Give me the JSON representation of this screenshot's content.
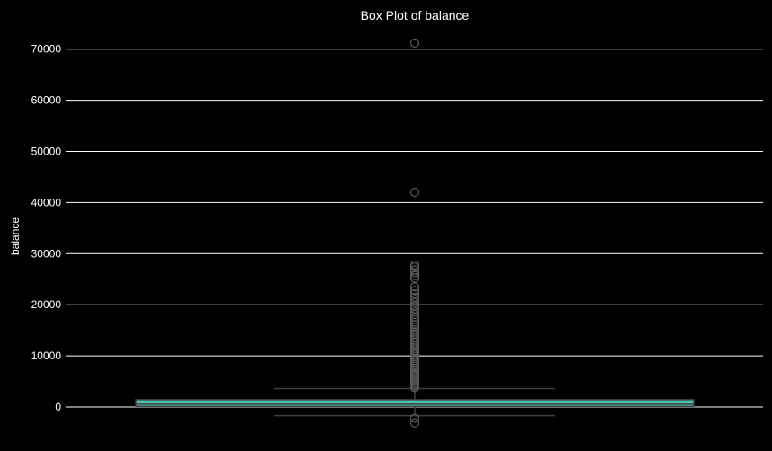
{
  "chart_data": {
    "type": "box",
    "title": "Box Plot of balance",
    "xlabel": "",
    "ylabel": "balance",
    "ylim": [
      -3800,
      73300
    ],
    "yticks": [
      0,
      10000,
      20000,
      30000,
      40000,
      50000,
      60000,
      70000
    ],
    "ytick_labels": [
      "0",
      "10000",
      "20000",
      "30000",
      "40000",
      "50000",
      "60000",
      "70000"
    ],
    "grid": "horizontal",
    "box": {
      "q1": 120,
      "median": 550,
      "q3": 1430,
      "whisker_low": -1700,
      "whisker_high": 3600
    },
    "outliers": [
      71200,
      42000,
      27800,
      27400,
      26800,
      26300,
      25700,
      25200,
      23500,
      22800,
      22100,
      21500,
      21000,
      20400,
      19800,
      19200,
      18600,
      18100,
      17600,
      17100,
      16600,
      16100,
      15600,
      15100,
      14700,
      14300,
      13900,
      13500,
      13100,
      12700,
      12300,
      11900,
      11500,
      11100,
      10700,
      10300,
      9900,
      9500,
      9100,
      8700,
      8300,
      7900,
      7500,
      7100,
      6800,
      6500,
      6200,
      5900,
      5600,
      5300,
      5000,
      4700,
      4400,
      4100,
      3800,
      -2200,
      -3100
    ],
    "colors": {
      "background": "#000000",
      "box_fill": "#4fc0b0",
      "box_edge": "#3f3f3f",
      "whisker": "#3f3f3f",
      "outlier_edge": "#5a5a5a",
      "grid": "#ffffff",
      "text": "#ffffff"
    }
  }
}
